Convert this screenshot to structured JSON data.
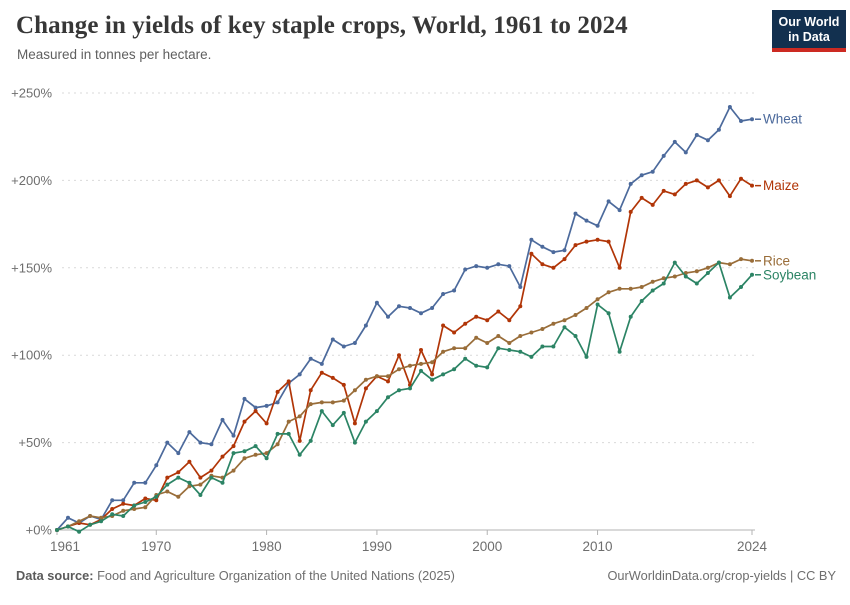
{
  "header": {
    "title": "Change in yields of key staple crops, World, 1961 to 2024",
    "subtitle": "Measured in tonnes per hectare.",
    "logo": {
      "line1": "Our World",
      "line2": "in Data",
      "bg": "#12304f",
      "bar": "#cc2a22"
    }
  },
  "footer": {
    "source_label": "Data source:",
    "source_text": " Food and Agriculture Organization of the United Nations (2025)",
    "right_text": "OurWorldinData.org/crop-yields | CC BY"
  },
  "chart_data": {
    "type": "line",
    "title": "Change in yields of key staple crops, World, 1961 to 2024",
    "xlabel": "",
    "ylabel": "",
    "x_start": 1961,
    "x_end": 2024,
    "x_ticks": [
      1961,
      1970,
      1980,
      1990,
      2000,
      2010,
      2024
    ],
    "y_tick_values": [
      0,
      50,
      100,
      150,
      200,
      250
    ],
    "y_tick_labels": [
      "+0%",
      "+50%",
      "+100%",
      "+150%",
      "+200%",
      "+250%"
    ],
    "ylim": [
      0,
      250
    ],
    "grid": "dashed-horizontal",
    "legend_position": "right-of-line-ends",
    "colors": {
      "grid": "#d9d9d9",
      "axis": "#b3b3b3",
      "tick_text": "#6e6e6e"
    },
    "series": [
      {
        "name": "Wheat",
        "color": "#4C6A9C",
        "values": [
          0,
          7,
          4,
          8,
          6,
          17,
          17,
          27,
          27,
          37,
          50,
          44,
          56,
          50,
          49,
          63,
          54,
          75,
          70,
          71,
          73,
          84,
          89,
          98,
          95,
          109,
          105,
          107,
          117,
          130,
          122,
          128,
          127,
          124,
          127,
          135,
          137,
          149,
          151,
          150,
          152,
          151,
          139,
          166,
          162,
          159,
          160,
          181,
          177,
          174,
          188,
          183,
          198,
          203,
          205,
          214,
          222,
          216,
          226,
          223,
          229,
          242,
          234,
          235
        ]
      },
      {
        "name": "Maize",
        "color": "#B13507",
        "values": [
          0,
          2,
          4,
          3,
          6,
          12,
          15,
          14,
          18,
          17,
          30,
          33,
          39,
          30,
          34,
          42,
          48,
          62,
          68,
          61,
          79,
          85,
          51,
          80,
          90,
          87,
          83,
          61,
          81,
          88,
          85,
          100,
          83,
          103,
          89,
          117,
          113,
          118,
          122,
          120,
          125,
          120,
          128,
          158,
          152,
          150,
          155,
          163,
          165,
          166,
          165,
          150,
          182,
          190,
          186,
          194,
          192,
          198,
          200,
          196,
          200,
          191,
          201,
          197
        ]
      },
      {
        "name": "Rice",
        "color": "#996D39",
        "values": [
          0,
          2,
          5,
          8,
          7,
          8,
          11,
          12,
          13,
          20,
          22,
          19,
          25,
          26,
          31,
          30,
          34,
          41,
          43,
          44,
          49,
          62,
          65,
          72,
          73,
          73,
          74,
          80,
          86,
          88,
          88,
          92,
          94,
          95,
          96,
          102,
          104,
          104,
          110,
          107,
          111,
          107,
          111,
          113,
          115,
          118,
          120,
          123,
          127,
          132,
          136,
          138,
          138,
          139,
          142,
          144,
          145,
          147,
          148,
          150,
          153,
          152,
          155,
          154
        ]
      },
      {
        "name": "Soybean",
        "color": "#2C8465",
        "values": [
          0,
          2,
          -1,
          3,
          5,
          9,
          8,
          14,
          16,
          19,
          26,
          30,
          27,
          20,
          30,
          27,
          44,
          45,
          48,
          41,
          55,
          55,
          43,
          51,
          68,
          60,
          67,
          50,
          62,
          68,
          76,
          80,
          81,
          91,
          86,
          89,
          92,
          98,
          94,
          93,
          104,
          103,
          102,
          99,
          105,
          105,
          116,
          111,
          99,
          129,
          124,
          102,
          122,
          131,
          137,
          141,
          153,
          145,
          141,
          147,
          153,
          133,
          139,
          146
        ]
      }
    ]
  }
}
